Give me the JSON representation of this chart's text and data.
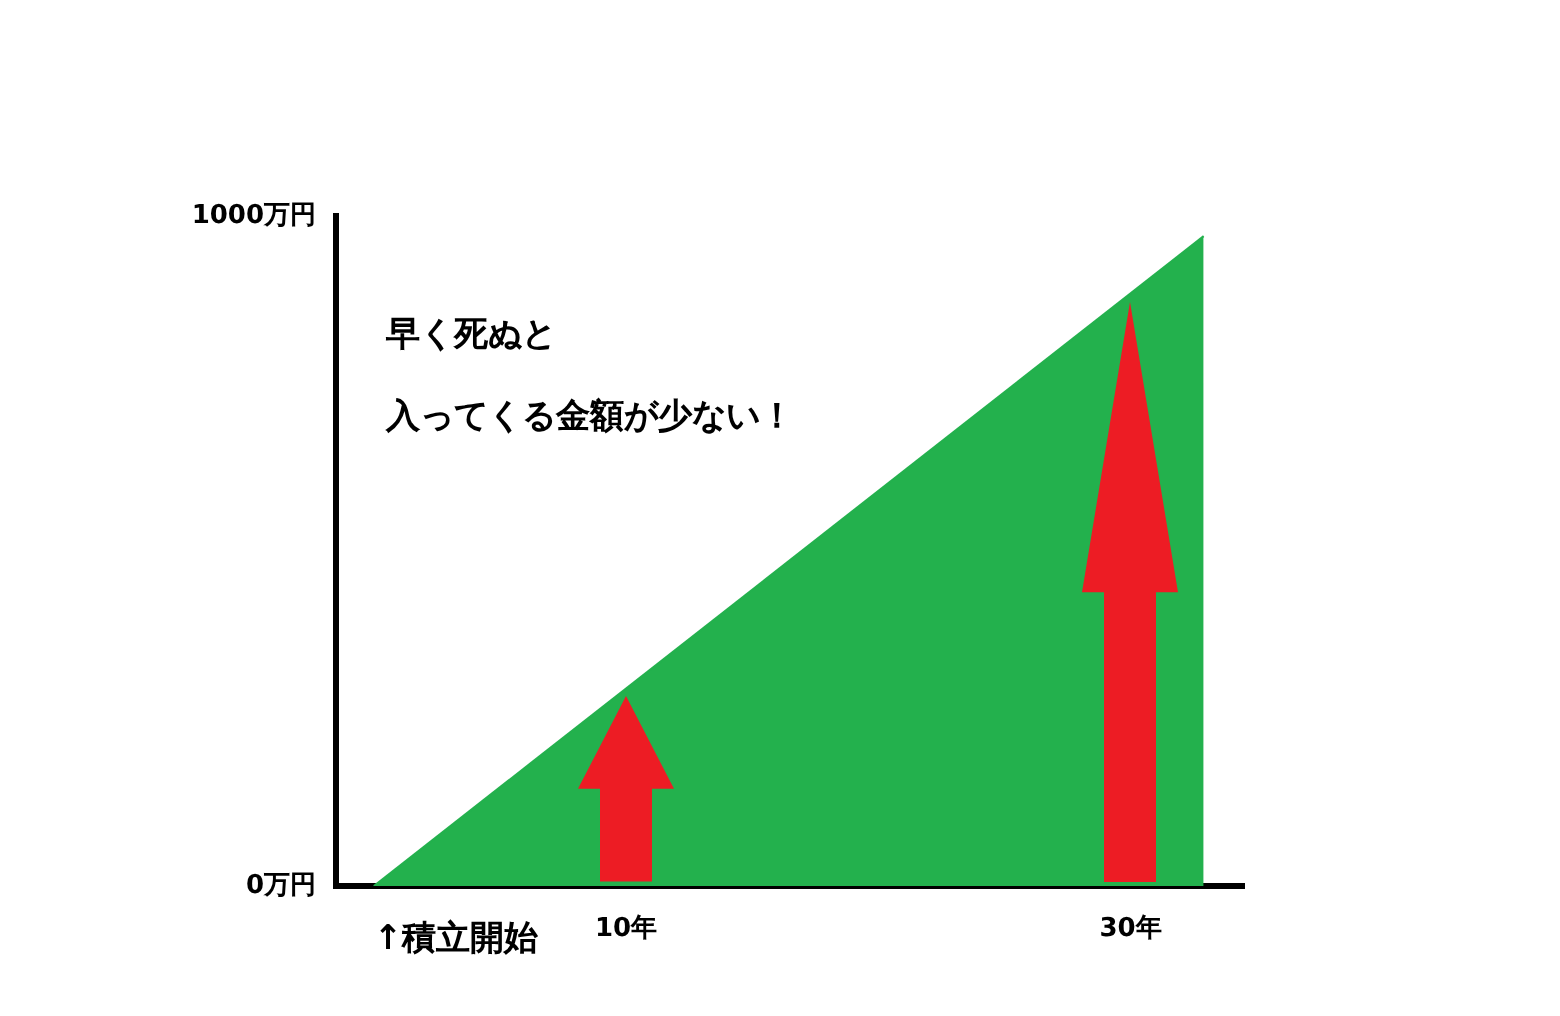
{
  "chart_data": {
    "type": "area",
    "x": [
      0,
      32.9
    ],
    "series": [
      {
        "color": "#23b14d",
        "values": [
          0,
          970
        ]
      }
    ],
    "xlim": [
      -1.5,
      34.5
    ],
    "xticks": [
      {
        "value": 10,
        "label": "10年"
      },
      {
        "value": 30,
        "label": "30年"
      }
    ],
    "ylim": [
      0,
      1000
    ],
    "yticks": [
      {
        "value": 0,
        "label": "0万円"
      },
      {
        "value": 1000,
        "label": "1000万円"
      }
    ],
    "grid": false,
    "legend": false,
    "annotations": [
      "早く死ぬと",
      "入ってくる金額が少ない！",
      {
        "text": "↑積立開始",
        "x": 0,
        "y": 0
      }
    ]
  }
}
